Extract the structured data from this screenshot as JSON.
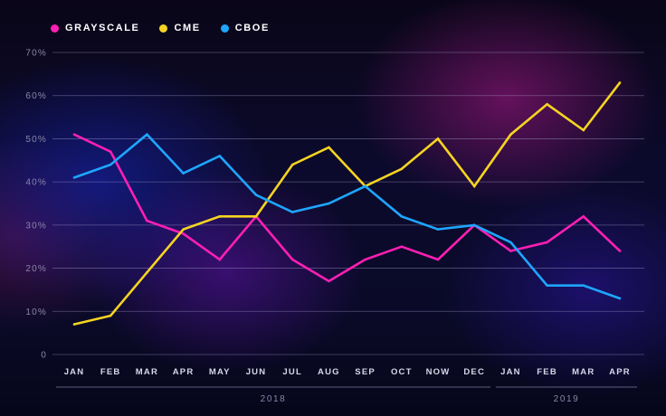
{
  "legend": [
    {
      "label": "GRAYSCALE",
      "color": "#ff1fb4"
    },
    {
      "label": "CME",
      "color": "#f5d422"
    },
    {
      "label": "CBOE",
      "color": "#1ea6ff"
    }
  ],
  "chart_data": {
    "type": "line",
    "title": "",
    "xlabel": "",
    "ylabel": "",
    "categories": [
      "JAN",
      "FEB",
      "MAR",
      "APR",
      "MAY",
      "JUN",
      "JUL",
      "AUG",
      "SEP",
      "OCT",
      "NOW",
      "DEC",
      "JAN",
      "FEB",
      "MAR",
      "APR"
    ],
    "y_ticks": [
      "0",
      "10%",
      "20%",
      "30%",
      "40%",
      "50%",
      "60%",
      "70%"
    ],
    "ylim": [
      0,
      70
    ],
    "grid": "horizontal",
    "legend_position": "top-left",
    "year_groups": [
      {
        "label": "2018",
        "from": 0,
        "to": 11
      },
      {
        "label": "2019",
        "from": 12,
        "to": 15
      }
    ],
    "series": [
      {
        "name": "GRAYSCALE",
        "color": "#ff1fb4",
        "values": [
          51,
          47,
          31,
          28,
          22,
          32,
          22,
          17,
          22,
          25,
          22,
          30,
          24,
          26,
          32,
          24
        ]
      },
      {
        "name": "CME",
        "color": "#f5d422",
        "values": [
          7,
          9,
          19,
          29,
          32,
          32,
          44,
          48,
          39,
          43,
          50,
          39,
          51,
          58,
          52,
          63
        ]
      },
      {
        "name": "CBOE",
        "color": "#1ea6ff",
        "values": [
          41,
          44,
          51,
          42,
          46,
          37,
          33,
          35,
          39,
          32,
          29,
          30,
          26,
          16,
          16,
          13
        ]
      }
    ]
  }
}
